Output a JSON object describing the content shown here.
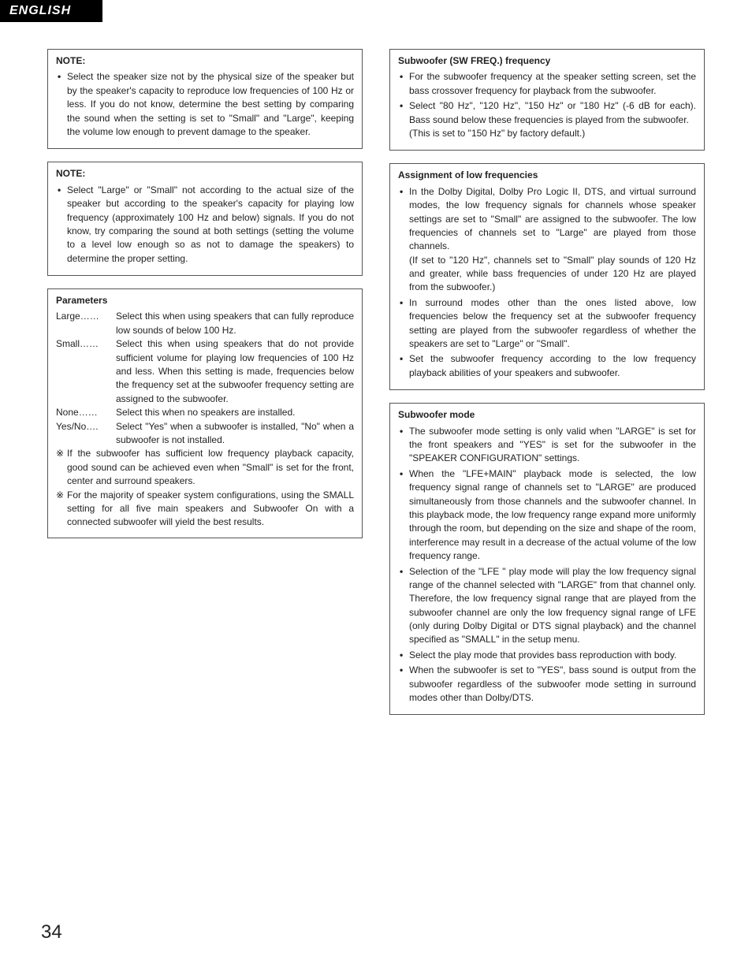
{
  "language_tab": "ENGLISH",
  "page_number": "34",
  "left": {
    "note1": {
      "title": "NOTE:",
      "items": [
        "Select the speaker size not by the physical size of the speaker but by the speaker's capacity to reproduce low frequencies of 100 Hz or less. If you do not know, determine the best setting by comparing the sound when the setting is set to \"Small\" and \"Large\", keeping the volume low enough to prevent damage to the speaker."
      ]
    },
    "note2": {
      "title": "NOTE:",
      "items": [
        "Select \"Large\" or \"Small\" not according to the actual size of the speaker but according to the speaker's capacity for playing low frequency (approximately 100 Hz and below) signals. If you do not know, try comparing the sound at both settings (setting the volume to a level low enough so as not to damage the speakers) to determine the proper setting."
      ]
    },
    "params": {
      "title": "Parameters",
      "large_k": "Large……",
      "large_v": "Select this when using speakers that can fully reproduce low sounds of below 100 Hz.",
      "small_k": "Small……",
      "small_v": "Select this when using speakers that do not provide sufficient volume for playing low frequencies of 100 Hz and less. When this setting is made, frequencies below the frequency set at the subwoofer frequency setting are assigned to the subwoofer.",
      "none_k": "None……",
      "none_v": "Select this when no speakers are installed.",
      "yesno_k": "Yes/No….",
      "yesno_v": "Select \"Yes\" when a subwoofer is installed, \"No\" when a subwoofer is not installed.",
      "star1": "If the subwoofer has sufficient low frequency playback capacity, good sound can be achieved even when \"Small\" is set for the front, center and surround speakers.",
      "star2": "For the majority of speaker system configurations, using the SMALL setting for all five main speakers and Subwoofer On with a connected subwoofer will yield the best results."
    }
  },
  "right": {
    "swfreq": {
      "title": "Subwoofer (SW FREQ.) frequency",
      "b1": "For the subwoofer frequency at the speaker setting screen, set the bass crossover frequency for playback from the subwoofer.",
      "b2": "Select \"80 Hz\", \"120 Hz\", \"150 Hz\" or \"180 Hz\" (-6 dB for each). Bass sound below these frequencies is played from the subwoofer.",
      "b2_sub": "(This is set to \"150 Hz\" by factory default.)"
    },
    "assign": {
      "title": "Assignment of low frequencies",
      "b1": "In the Dolby Digital, Dolby Pro Logic II, DTS, and virtual surround modes, the low frequency signals for channels whose speaker settings are set to \"Small\" are assigned to the subwoofer.  The low frequencies of channels set to \"Large\" are played from those channels.",
      "b1_sub": "(If set to \"120 Hz\", channels set to \"Small\" play sounds of 120 Hz and greater, while bass frequencies of under 120 Hz are played from the subwoofer.)",
      "b2": "In surround modes other than the ones listed above, low frequencies below the frequency set at the subwoofer frequency setting are played from the subwoofer regardless of whether the speakers are set to \"Large\" or \"Small\".",
      "b3": "Set the subwoofer frequency according to the low frequency playback abilities of your speakers and subwoofer."
    },
    "swmode": {
      "title": "Subwoofer mode",
      "b1": "The subwoofer mode setting is only valid when \"LARGE\" is set for the front speakers and \"YES\" is set for the subwoofer in the \"SPEAKER CONFIGURATION\" settings.",
      "b2": "When the \"LFE+MAIN\" playback mode is selected, the low frequency signal range of channels set to \"LARGE\" are produced simultaneously from those channels and the subwoofer channel. In this playback mode, the low frequency range expand more uniformly through the room, but depending on the size and shape of the room, interference may result in a decrease of the actual volume of the low frequency range.",
      "b3": "Selection of the \"LFE \" play mode will play the low frequency signal range of the channel selected with \"LARGE\" from that channel only. Therefore, the low frequency signal range that are played from the subwoofer channel are only the low frequency signal range of LFE (only during Dolby Digital or DTS signal playback) and the channel specified as \"SMALL\" in the setup menu.",
      "b4": "Select the play mode that provides bass reproduction with body.",
      "b5": "When the subwoofer is set to \"YES\", bass sound is output from the subwoofer regardless of the subwoofer mode setting in surround modes other than Dolby/DTS."
    }
  }
}
